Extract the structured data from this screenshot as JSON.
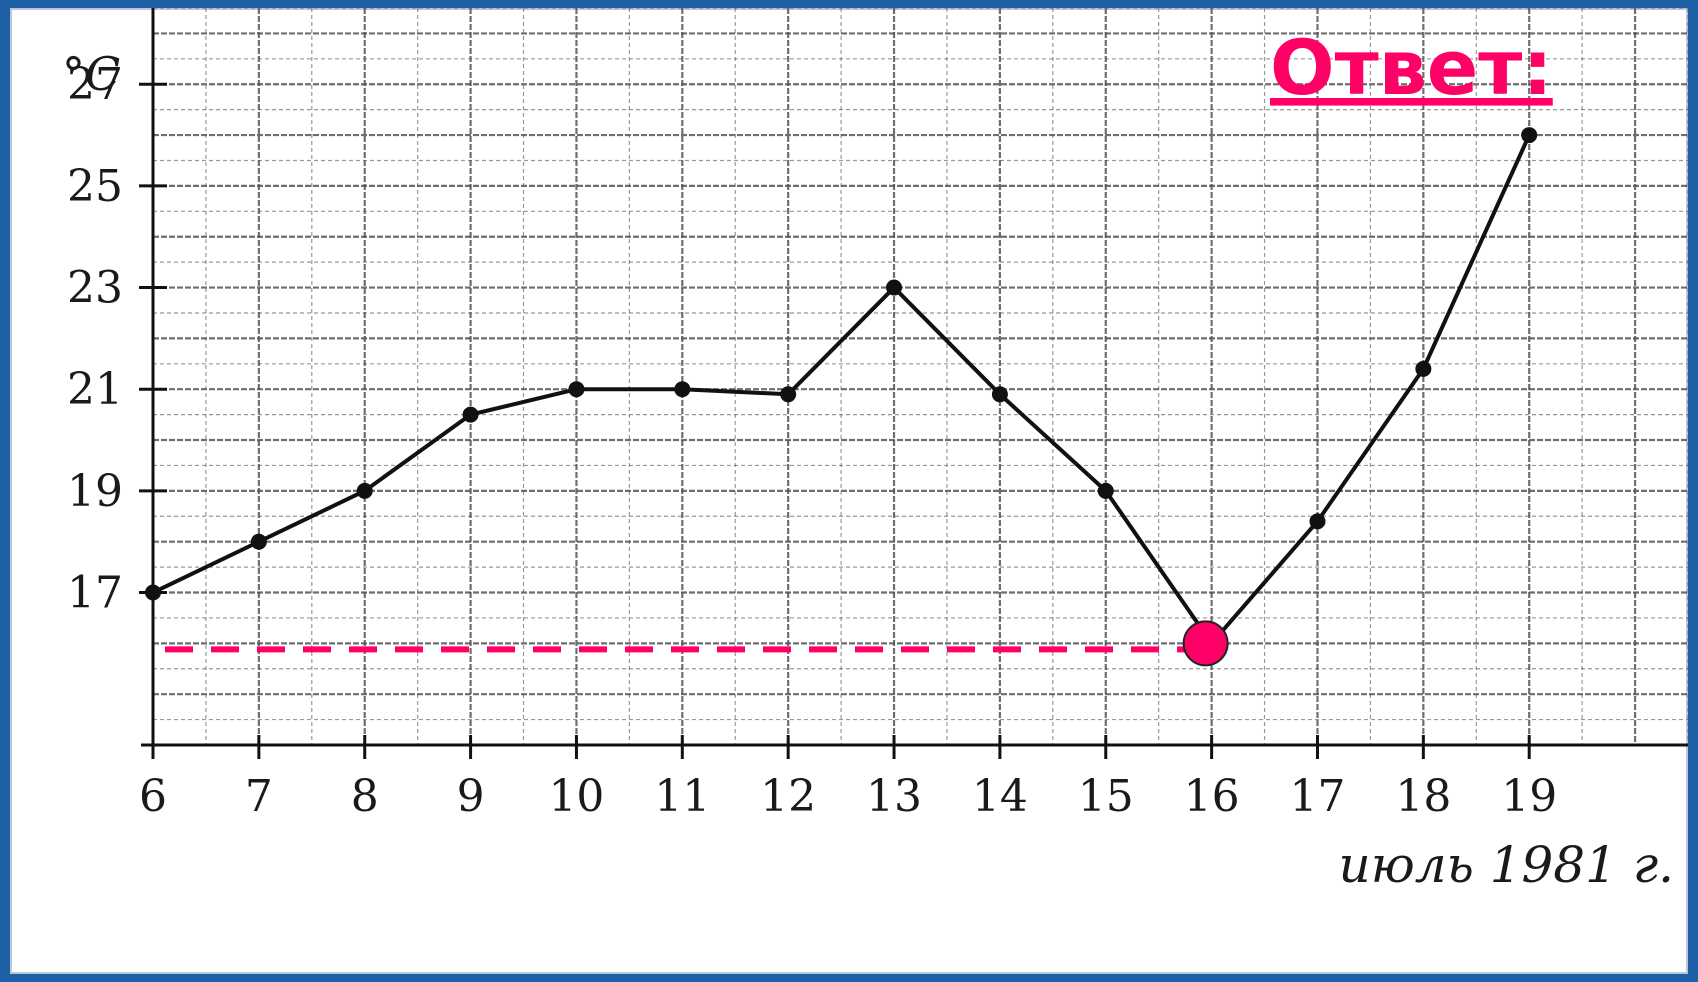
{
  "chart_data": {
    "type": "line",
    "title": "",
    "ylabel": "°C",
    "xlabel": "июль 1981 г.",
    "x": [
      6,
      7,
      8,
      9,
      10,
      11,
      12,
      13,
      14,
      15,
      16,
      17,
      18,
      19
    ],
    "series": [
      {
        "values": [
          17,
          18,
          19,
          20.5,
          21,
          21,
          20.9,
          23,
          20.9,
          19,
          16,
          18.4,
          21.4,
          26
        ]
      }
    ],
    "x_ticks": [
      "6",
      "7",
      "8",
      "9",
      "10",
      "11",
      "12",
      "13",
      "14",
      "15",
      "16",
      "17",
      "18",
      "19"
    ],
    "y_ticks": [
      "17",
      "19",
      "21",
      "23",
      "25",
      "27"
    ],
    "xlim": [
      6,
      20.5
    ],
    "ylim": [
      14,
      28.5
    ],
    "grid": true,
    "highlight": {
      "x": 16,
      "y": 16,
      "color": "#ff0066"
    },
    "annotation": "Ответ:",
    "colors": {
      "line": "#111111",
      "grid": "#555555",
      "accent": "#ff0066"
    }
  }
}
